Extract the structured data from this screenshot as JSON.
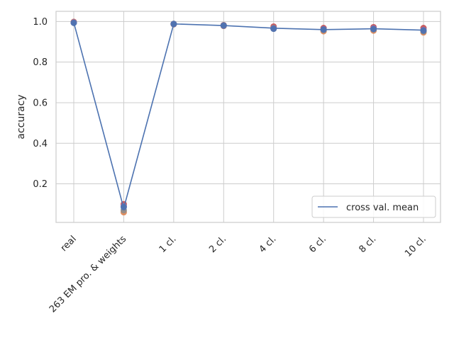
{
  "chart_data": {
    "type": "line",
    "title": "",
    "xlabel": "",
    "ylabel": "accuracy",
    "categories": [
      "real",
      "263 EM pro. & weights",
      "1 cl.",
      "2 cl.",
      "4 cl.",
      "6 cl.",
      "8 cl.",
      "10 cl."
    ],
    "ylim": [
      0.01,
      1.05
    ],
    "yticks": [
      0.2,
      0.4,
      0.6,
      0.8,
      1.0
    ],
    "ytick_labels": [
      "0.2",
      "0.4",
      "0.6",
      "0.8",
      "1.0"
    ],
    "grid": true,
    "legend_position": "lower-right",
    "series": [
      {
        "name": "cross val. mean",
        "color": "#4c72b0",
        "values": [
          0.995,
          0.08,
          0.988,
          0.98,
          0.967,
          0.96,
          0.964,
          0.957
        ]
      }
    ],
    "fold_points": [
      {
        "color": "#c44e52",
        "values": [
          0.998,
          0.1,
          0.988,
          0.982,
          0.975,
          0.968,
          0.972,
          0.968
        ]
      },
      {
        "color": "#dd8452",
        "values": [
          0.996,
          0.06,
          0.986,
          0.978,
          0.965,
          0.952,
          0.955,
          0.946
        ]
      },
      {
        "color": "#8c8c8c",
        "values": [
          0.994,
          0.07,
          0.988,
          0.981,
          0.968,
          0.958,
          0.962,
          0.952
        ]
      },
      {
        "color": "#8172b2",
        "values": [
          0.995,
          0.09,
          0.987,
          0.979,
          0.966,
          0.962,
          0.966,
          0.958
        ]
      },
      {
        "color": "#4c72b0",
        "values": [
          0.993,
          0.085,
          0.988,
          0.98,
          0.964,
          0.96,
          0.962,
          0.955
        ]
      }
    ]
  }
}
